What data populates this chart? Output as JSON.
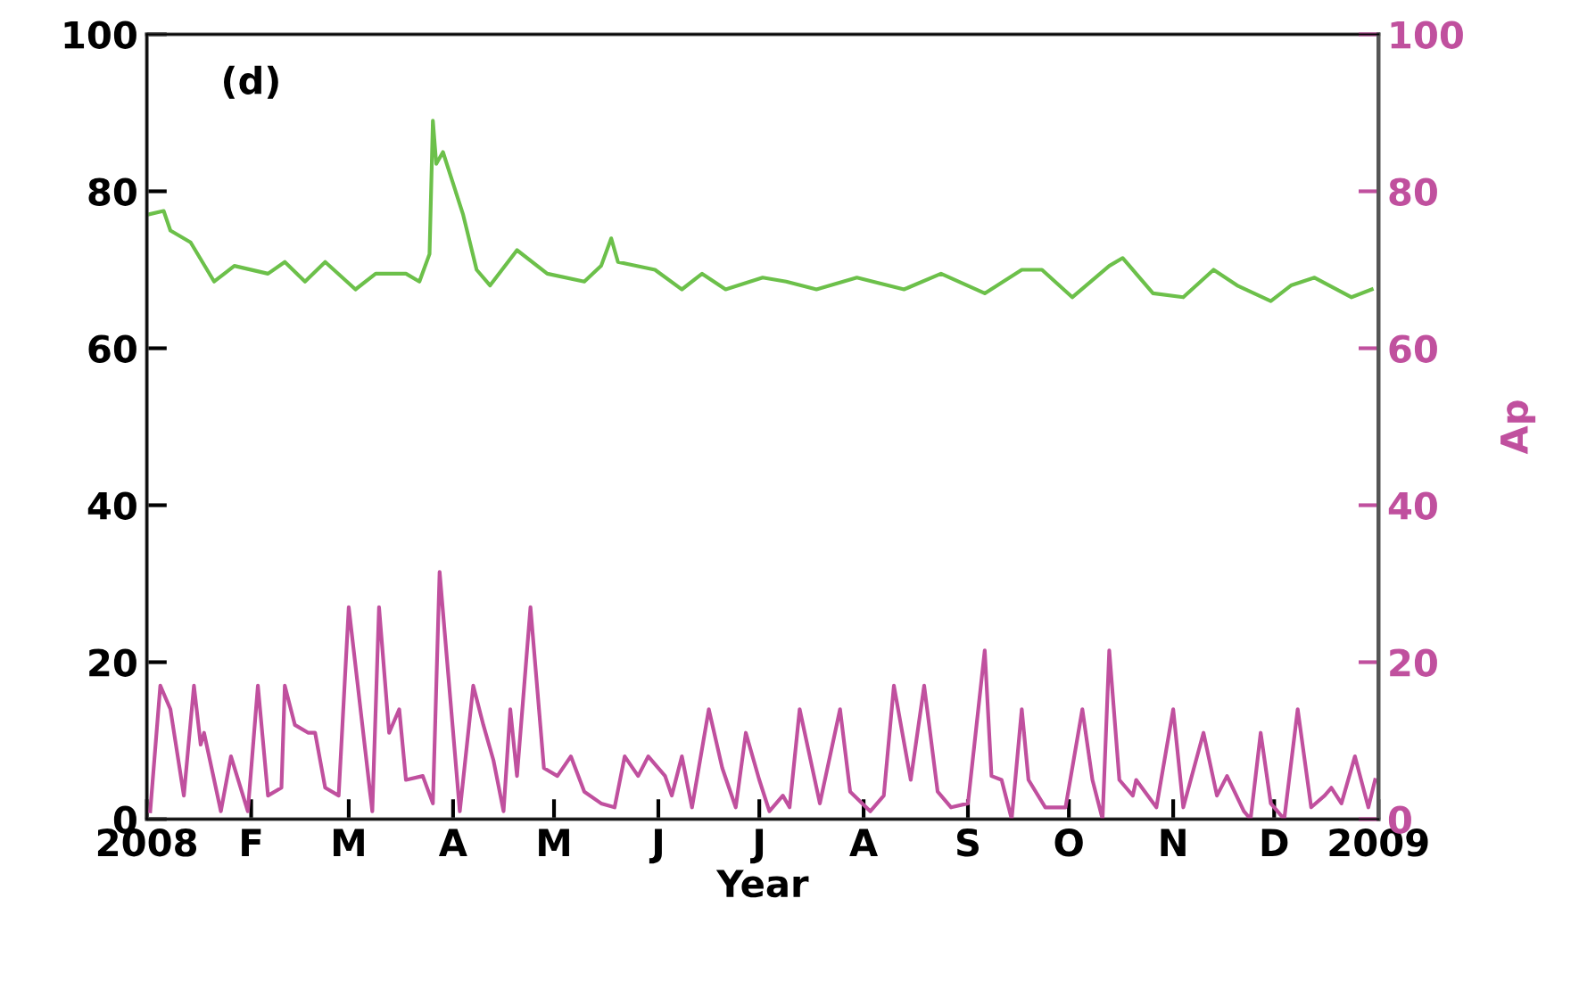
{
  "chart_data": {
    "type": "line",
    "xlabel": "Year",
    "y2label": "Ap",
    "annotations": [
      "(d)"
    ],
    "xlim": [
      "2008-01-01",
      "2009-01-01"
    ],
    "xticks": [
      {
        "value": "2008-01-01",
        "label": "2008"
      },
      {
        "value": "2008-02-01",
        "label": "F"
      },
      {
        "value": "2008-03-01",
        "label": "M"
      },
      {
        "value": "2008-04-01",
        "label": "A"
      },
      {
        "value": "2008-05-01",
        "label": "M"
      },
      {
        "value": "2008-06-01",
        "label": "J"
      },
      {
        "value": "2008-07-01",
        "label": "J"
      },
      {
        "value": "2008-08-01",
        "label": "A"
      },
      {
        "value": "2008-09-01",
        "label": "S"
      },
      {
        "value": "2008-10-01",
        "label": "O"
      },
      {
        "value": "2008-11-01",
        "label": "N"
      },
      {
        "value": "2008-12-01",
        "label": "D"
      },
      {
        "value": "2009-01-01",
        "label": "2009"
      }
    ],
    "ylim": [
      0,
      100
    ],
    "yticks": [
      0,
      20,
      40,
      60,
      80,
      100
    ],
    "y2lim": [
      0,
      100
    ],
    "y2ticks": [
      0,
      20,
      40,
      60,
      80,
      100
    ],
    "grid": false,
    "series": [
      {
        "color": "#6cc04a",
        "x": [
          "2008-01-01",
          "2008-01-06",
          "2008-01-08",
          "2008-01-14",
          "2008-01-21",
          "2008-01-27",
          "2008-02-06",
          "2008-02-11",
          "2008-02-17",
          "2008-02-23",
          "2008-03-03",
          "2008-03-09",
          "2008-03-18",
          "2008-03-22",
          "2008-03-25",
          "2008-03-26",
          "2008-03-27",
          "2008-03-29",
          "2008-04-04",
          "2008-04-08",
          "2008-04-12",
          "2008-04-20",
          "2008-04-29",
          "2008-05-10",
          "2008-05-15",
          "2008-05-18",
          "2008-05-20",
          "2008-05-31",
          "2008-06-08",
          "2008-06-14",
          "2008-06-21",
          "2008-07-02",
          "2008-07-09",
          "2008-07-18",
          "2008-07-30",
          "2008-08-13",
          "2008-08-24",
          "2008-09-06",
          "2008-09-17",
          "2008-09-23",
          "2008-10-02",
          "2008-10-13",
          "2008-10-17",
          "2008-10-26",
          "2008-11-04",
          "2008-11-13",
          "2008-11-20",
          "2008-11-30",
          "2008-12-06",
          "2008-12-13",
          "2008-12-24",
          "2008-12-30"
        ],
        "values": [
          77,
          77.5,
          75,
          73.5,
          68.5,
          70.5,
          69.5,
          71,
          68.5,
          71,
          67.5,
          69.5,
          69.5,
          68.5,
          72,
          89,
          83.5,
          85,
          77,
          70,
          68,
          72.5,
          69.5,
          68.5,
          70.5,
          74,
          71,
          70,
          67.5,
          69.5,
          67.5,
          69,
          68.5,
          67.5,
          69,
          67.5,
          69.5,
          67,
          70,
          70,
          66.5,
          70.5,
          71.5,
          67,
          66.5,
          70,
          68,
          66,
          68,
          69,
          66.5,
          67.5
        ]
      },
      {
        "color": "#c0509e",
        "axis": "y2",
        "x": [
          "2008-01-02",
          "2008-01-05",
          "2008-01-08",
          "2008-01-12",
          "2008-01-15",
          "2008-01-17",
          "2008-01-18",
          "2008-01-23",
          "2008-01-26",
          "2008-01-31",
          "2008-02-03",
          "2008-02-06",
          "2008-02-10",
          "2008-02-11",
          "2008-02-14",
          "2008-02-18",
          "2008-02-20",
          "2008-02-23",
          "2008-02-27",
          "2008-03-01",
          "2008-03-08",
          "2008-03-10",
          "2008-03-13",
          "2008-03-16",
          "2008-03-18",
          "2008-03-23",
          "2008-03-26",
          "2008-03-28",
          "2008-04-03",
          "2008-04-07",
          "2008-04-10",
          "2008-04-13",
          "2008-04-16",
          "2008-04-18",
          "2008-04-20",
          "2008-04-24",
          "2008-04-28",
          "2008-05-02",
          "2008-05-06",
          "2008-05-10",
          "2008-05-15",
          "2008-05-19",
          "2008-05-22",
          "2008-05-26",
          "2008-05-29",
          "2008-06-03",
          "2008-06-05",
          "2008-06-08",
          "2008-06-11",
          "2008-06-16",
          "2008-06-20",
          "2008-06-24",
          "2008-06-27",
          "2008-07-01",
          "2008-07-04",
          "2008-07-08",
          "2008-07-10",
          "2008-07-13",
          "2008-07-19",
          "2008-07-25",
          "2008-07-28",
          "2008-08-03",
          "2008-08-07",
          "2008-08-10",
          "2008-08-15",
          "2008-08-19",
          "2008-08-23",
          "2008-08-27",
          "2008-09-01",
          "2008-09-06",
          "2008-09-08",
          "2008-09-11",
          "2008-09-14",
          "2008-09-17",
          "2008-09-19",
          "2008-09-24",
          "2008-09-30",
          "2008-10-05",
          "2008-10-08",
          "2008-10-11",
          "2008-10-13",
          "2008-10-16",
          "2008-10-20",
          "2008-10-21",
          "2008-10-27",
          "2008-11-01",
          "2008-11-04",
          "2008-11-10",
          "2008-11-14",
          "2008-11-17",
          "2008-11-22",
          "2008-11-24",
          "2008-11-27",
          "2008-11-30",
          "2008-12-04",
          "2008-12-08",
          "2008-12-12",
          "2008-12-16",
          "2008-12-18",
          "2008-12-21",
          "2008-12-25",
          "2008-12-29",
          "2008-12-31"
        ],
        "values": [
          1,
          17,
          14,
          3,
          17,
          9.5,
          11,
          1,
          8,
          1,
          17,
          3,
          4,
          17,
          12,
          11,
          11,
          4,
          3,
          27,
          1,
          27,
          11,
          14,
          5,
          5.5,
          2,
          31.5,
          1,
          17,
          12,
          7.5,
          1,
          14,
          5.5,
          27,
          6.5,
          5.5,
          8,
          3.5,
          2,
          1.5,
          8,
          5.5,
          8,
          5.5,
          3,
          8,
          1.5,
          14,
          6.5,
          1.5,
          11,
          5,
          1,
          3,
          1.5,
          14,
          2,
          14,
          3.5,
          1,
          3,
          17,
          5,
          17,
          3.5,
          1.5,
          2,
          21.5,
          5.5,
          5,
          0,
          14,
          5,
          1.5,
          1.5,
          14,
          5,
          0,
          21.5,
          5,
          3,
          5,
          1.5,
          14,
          1.5,
          11,
          3,
          5.5,
          1,
          0,
          11,
          2,
          0,
          14,
          1.5,
          3,
          4,
          2,
          8,
          1.5,
          5
        ]
      }
    ]
  }
}
